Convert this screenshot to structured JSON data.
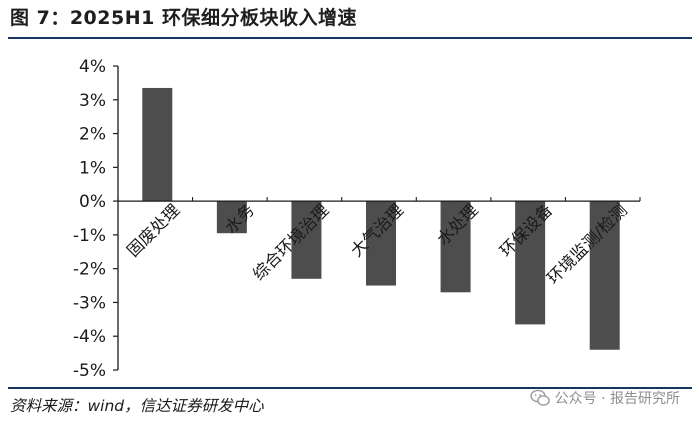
{
  "title": "图 7：2025H1 环保细分板块收入增速",
  "source": "资料来源：wind，信达证券研发中心",
  "watermark": "公众号 · 报告研究所",
  "colors": {
    "bar": "#4d4d4d",
    "axis": "#1a1a1a",
    "rule": "#17365d"
  },
  "chart_data": {
    "type": "bar",
    "categories": [
      "固废处理",
      "水务",
      "综合环境治理",
      "大气治理",
      "水处理",
      "环保设备",
      "环境监测/检测"
    ],
    "values": [
      3.35,
      -0.95,
      -2.3,
      -2.5,
      -2.7,
      -3.65,
      -4.4
    ],
    "yticks": [
      "4%",
      "3%",
      "2%",
      "1%",
      "0%",
      "-1%",
      "-2%",
      "-3%",
      "-4%",
      "-5%"
    ],
    "ylim": [
      -5,
      4
    ],
    "unit": "%",
    "grid": false,
    "legend": "none"
  }
}
